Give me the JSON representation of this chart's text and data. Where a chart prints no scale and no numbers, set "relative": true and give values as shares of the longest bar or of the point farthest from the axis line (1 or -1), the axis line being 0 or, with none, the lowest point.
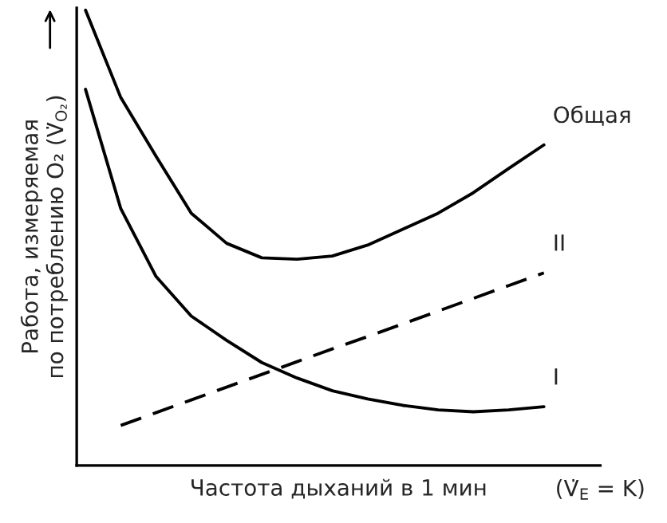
{
  "chart_data": {
    "type": "line",
    "relative": true,
    "xlabel": "Частота дыханий в 1 мин",
    "ylabel": "Работа, измеряемая\nпо потреблению O₂ (V̇$_{O₂}$)",
    "annotations": [
      "(V̇$_{E}$ = K)"
    ],
    "categories": [
      null,
      null,
      null,
      null,
      null,
      null,
      null,
      null,
      null,
      null,
      null,
      null,
      null,
      null
    ],
    "series": [
      {
        "name": "Общая",
        "color": "#000000",
        "line_style": "solid",
        "values": [
          1.0,
          0.808,
          0.679,
          0.554,
          0.488,
          0.456,
          0.453,
          0.46,
          0.484,
          0.519,
          0.554,
          0.599,
          0.652,
          0.704
        ]
      },
      {
        "name": "I",
        "color": "#000000",
        "line_style": "solid",
        "values": [
          0.826,
          0.564,
          0.415,
          0.328,
          0.275,
          0.226,
          0.192,
          0.164,
          0.146,
          0.132,
          0.122,
          0.118,
          0.122,
          0.129
        ]
      },
      {
        "name": "II",
        "color": "#000000",
        "line_style": "dashed",
        "values": [
          null,
          0.088,
          0.116,
          0.144,
          0.172,
          0.2,
          0.228,
          0.256,
          0.283,
          0.311,
          0.339,
          0.367,
          0.395,
          0.423
        ]
      }
    ]
  }
}
